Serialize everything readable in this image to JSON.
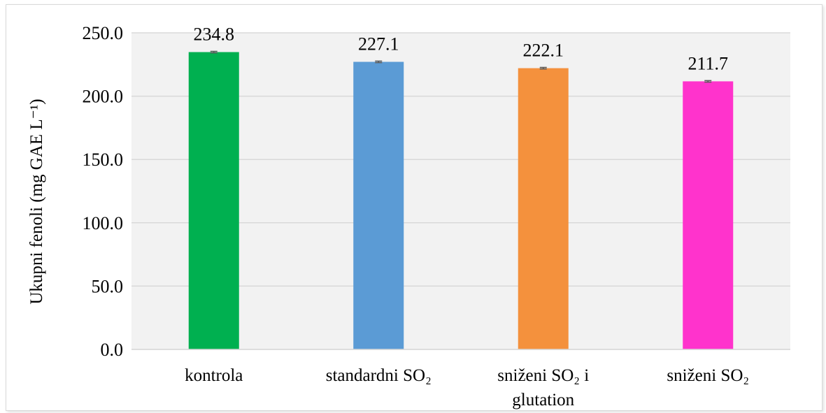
{
  "chart_data": {
    "type": "bar",
    "ylabel": "Ukupni  fenoli (mg GAE L⁻¹)",
    "ylim": [
      0,
      250
    ],
    "yticks": [
      "0.0",
      "50.0",
      "100.0",
      "150.0",
      "200.0",
      "250.0"
    ],
    "ytick_values": [
      0,
      50,
      100,
      150,
      200,
      250
    ],
    "grid": true,
    "categories": [
      [
        "kontrola"
      ],
      [
        "standardni SO₂"
      ],
      [
        "sniženi SO₂ i",
        "glutation"
      ],
      [
        "sniženi SO₂"
      ]
    ],
    "values": [
      234.8,
      227.1,
      222.1,
      211.7
    ],
    "value_labels": [
      "234.8",
      "227.1",
      "222.1",
      "211.7"
    ],
    "error": [
      0.6,
      0.6,
      0.6,
      0.6
    ],
    "colors": [
      "#00b050",
      "#5b9bd5",
      "#f4913d",
      "#ff33cc"
    ],
    "plot_background": "#f2f2f2",
    "gridline_color": "#d9d9d9",
    "errorbar_color": "#595959"
  }
}
